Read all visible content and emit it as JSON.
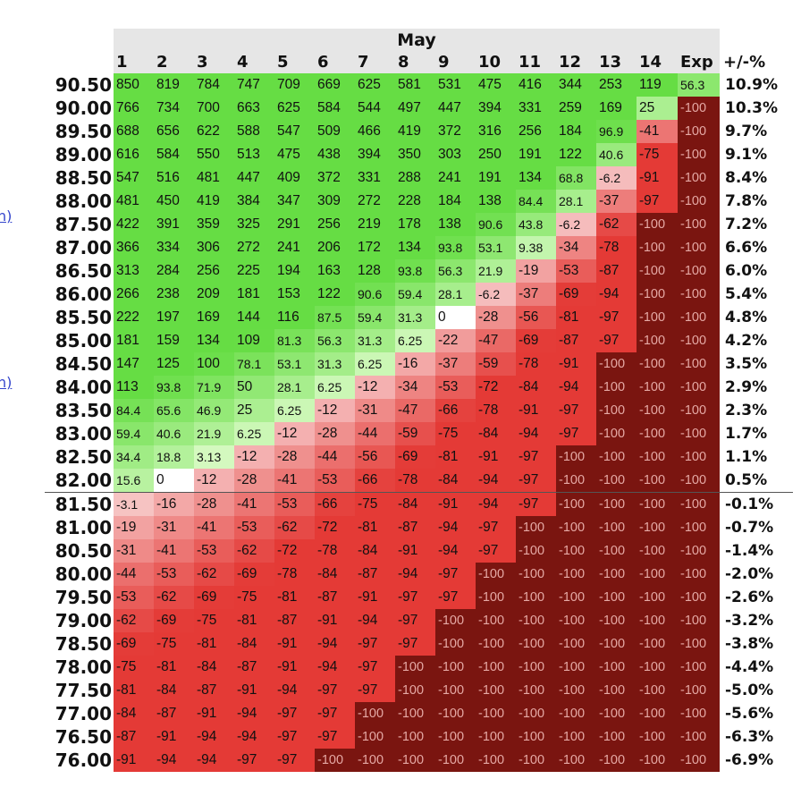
{
  "edge_links": [
    "n)",
    "n)"
  ],
  "header": {
    "month": "May",
    "pct_label": "+/-%"
  },
  "chart_data": {
    "type": "heatmap",
    "title": "May",
    "columns": [
      "1",
      "2",
      "3",
      "4",
      "5",
      "6",
      "7",
      "8",
      "9",
      "10",
      "11",
      "12",
      "13",
      "14",
      "Exp"
    ],
    "rows": [
      {
        "price": "90.50",
        "pct": "10.9%",
        "values": [
          "850",
          "819",
          "784",
          "747",
          "709",
          "669",
          "625",
          "581",
          "531",
          "475",
          "416",
          "344",
          "253",
          "119",
          "56.3"
        ]
      },
      {
        "price": "90.00",
        "pct": "10.3%",
        "values": [
          "766",
          "734",
          "700",
          "663",
          "625",
          "584",
          "544",
          "497",
          "447",
          "394",
          "331",
          "259",
          "169",
          "25",
          "-100"
        ]
      },
      {
        "price": "89.50",
        "pct": "9.7%",
        "values": [
          "688",
          "656",
          "622",
          "588",
          "547",
          "509",
          "466",
          "419",
          "372",
          "316",
          "256",
          "184",
          "96.9",
          "-41",
          "-100"
        ]
      },
      {
        "price": "89.00",
        "pct": "9.1%",
        "values": [
          "616",
          "584",
          "550",
          "513",
          "475",
          "438",
          "394",
          "350",
          "303",
          "250",
          "191",
          "122",
          "40.6",
          "-75",
          "-100"
        ]
      },
      {
        "price": "88.50",
        "pct": "8.4%",
        "values": [
          "547",
          "516",
          "481",
          "447",
          "409",
          "372",
          "331",
          "288",
          "241",
          "191",
          "134",
          "68.8",
          "-6.2",
          "-91",
          "-100"
        ]
      },
      {
        "price": "88.00",
        "pct": "7.8%",
        "values": [
          "481",
          "450",
          "419",
          "384",
          "347",
          "309",
          "272",
          "228",
          "184",
          "138",
          "84.4",
          "28.1",
          "-37",
          "-97",
          "-100"
        ]
      },
      {
        "price": "87.50",
        "pct": "7.2%",
        "values": [
          "422",
          "391",
          "359",
          "325",
          "291",
          "256",
          "219",
          "178",
          "138",
          "90.6",
          "43.8",
          "-6.2",
          "-62",
          "-100",
          "-100"
        ]
      },
      {
        "price": "87.00",
        "pct": "6.6%",
        "values": [
          "366",
          "334",
          "306",
          "272",
          "241",
          "206",
          "172",
          "134",
          "93.8",
          "53.1",
          "9.38",
          "-34",
          "-78",
          "-100",
          "-100"
        ]
      },
      {
        "price": "86.50",
        "pct": "6.0%",
        "values": [
          "313",
          "284",
          "256",
          "225",
          "194",
          "163",
          "128",
          "93.8",
          "56.3",
          "21.9",
          "-19",
          "-53",
          "-87",
          "-100",
          "-100"
        ]
      },
      {
        "price": "86.00",
        "pct": "5.4%",
        "values": [
          "266",
          "238",
          "209",
          "181",
          "153",
          "122",
          "90.6",
          "59.4",
          "28.1",
          "-6.2",
          "-37",
          "-69",
          "-94",
          "-100",
          "-100"
        ]
      },
      {
        "price": "85.50",
        "pct": "4.8%",
        "values": [
          "222",
          "197",
          "169",
          "144",
          "116",
          "87.5",
          "59.4",
          "31.3",
          "0",
          "-28",
          "-56",
          "-81",
          "-97",
          "-100",
          "-100"
        ]
      },
      {
        "price": "85.00",
        "pct": "4.2%",
        "values": [
          "181",
          "159",
          "134",
          "109",
          "81.3",
          "56.3",
          "31.3",
          "6.25",
          "-22",
          "-47",
          "-69",
          "-87",
          "-97",
          "-100",
          "-100"
        ]
      },
      {
        "price": "84.50",
        "pct": "3.5%",
        "values": [
          "147",
          "125",
          "100",
          "78.1",
          "53.1",
          "31.3",
          "6.25",
          "-16",
          "-37",
          "-59",
          "-78",
          "-91",
          "-100",
          "-100",
          "-100"
        ]
      },
      {
        "price": "84.00",
        "pct": "2.9%",
        "values": [
          "113",
          "93.8",
          "71.9",
          "50",
          "28.1",
          "6.25",
          "-12",
          "-34",
          "-53",
          "-72",
          "-84",
          "-94",
          "-100",
          "-100",
          "-100"
        ]
      },
      {
        "price": "83.50",
        "pct": "2.3%",
        "values": [
          "84.4",
          "65.6",
          "46.9",
          "25",
          "6.25",
          "-12",
          "-31",
          "-47",
          "-66",
          "-78",
          "-91",
          "-97",
          "-100",
          "-100",
          "-100"
        ]
      },
      {
        "price": "83.00",
        "pct": "1.7%",
        "values": [
          "59.4",
          "40.6",
          "21.9",
          "6.25",
          "-12",
          "-28",
          "-44",
          "-59",
          "-75",
          "-84",
          "-94",
          "-97",
          "-100",
          "-100",
          "-100"
        ]
      },
      {
        "price": "82.50",
        "pct": "1.1%",
        "values": [
          "34.4",
          "18.8",
          "3.13",
          "-12",
          "-28",
          "-44",
          "-56",
          "-69",
          "-81",
          "-91",
          "-97",
          "-100",
          "-100",
          "-100",
          "-100"
        ]
      },
      {
        "price": "82.00",
        "pct": "0.5%",
        "values": [
          "15.6",
          "0",
          "-12",
          "-28",
          "-41",
          "-53",
          "-66",
          "-78",
          "-84",
          "-94",
          "-97",
          "-100",
          "-100",
          "-100",
          "-100"
        ]
      },
      {
        "price": "81.50",
        "pct": "-0.1%",
        "values": [
          "-3.1",
          "-16",
          "-28",
          "-41",
          "-53",
          "-66",
          "-75",
          "-84",
          "-91",
          "-94",
          "-97",
          "-100",
          "-100",
          "-100",
          "-100"
        ]
      },
      {
        "price": "81.00",
        "pct": "-0.7%",
        "values": [
          "-19",
          "-31",
          "-41",
          "-53",
          "-62",
          "-72",
          "-81",
          "-87",
          "-94",
          "-97",
          "-100",
          "-100",
          "-100",
          "-100",
          "-100"
        ]
      },
      {
        "price": "80.50",
        "pct": "-1.4%",
        "values": [
          "-31",
          "-41",
          "-53",
          "-62",
          "-72",
          "-78",
          "-84",
          "-91",
          "-94",
          "-97",
          "-100",
          "-100",
          "-100",
          "-100",
          "-100"
        ]
      },
      {
        "price": "80.00",
        "pct": "-2.0%",
        "values": [
          "-44",
          "-53",
          "-62",
          "-69",
          "-78",
          "-84",
          "-87",
          "-94",
          "-97",
          "-100",
          "-100",
          "-100",
          "-100",
          "-100",
          "-100"
        ]
      },
      {
        "price": "79.50",
        "pct": "-2.6%",
        "values": [
          "-53",
          "-62",
          "-69",
          "-75",
          "-81",
          "-87",
          "-91",
          "-97",
          "-97",
          "-100",
          "-100",
          "-100",
          "-100",
          "-100",
          "-100"
        ]
      },
      {
        "price": "79.00",
        "pct": "-3.2%",
        "values": [
          "-62",
          "-69",
          "-75",
          "-81",
          "-87",
          "-91",
          "-94",
          "-97",
          "-100",
          "-100",
          "-100",
          "-100",
          "-100",
          "-100",
          "-100"
        ]
      },
      {
        "price": "78.50",
        "pct": "-3.8%",
        "values": [
          "-69",
          "-75",
          "-81",
          "-84",
          "-91",
          "-94",
          "-97",
          "-97",
          "-100",
          "-100",
          "-100",
          "-100",
          "-100",
          "-100",
          "-100"
        ]
      },
      {
        "price": "78.00",
        "pct": "-4.4%",
        "values": [
          "-75",
          "-81",
          "-84",
          "-87",
          "-91",
          "-94",
          "-97",
          "-100",
          "-100",
          "-100",
          "-100",
          "-100",
          "-100",
          "-100",
          "-100"
        ]
      },
      {
        "price": "77.50",
        "pct": "-5.0%",
        "values": [
          "-81",
          "-84",
          "-87",
          "-91",
          "-94",
          "-97",
          "-97",
          "-100",
          "-100",
          "-100",
          "-100",
          "-100",
          "-100",
          "-100",
          "-100"
        ]
      },
      {
        "price": "77.00",
        "pct": "-5.6%",
        "values": [
          "-84",
          "-87",
          "-91",
          "-94",
          "-97",
          "-97",
          "-100",
          "-100",
          "-100",
          "-100",
          "-100",
          "-100",
          "-100",
          "-100",
          "-100"
        ]
      },
      {
        "price": "76.50",
        "pct": "-6.3%",
        "values": [
          "-87",
          "-91",
          "-94",
          "-94",
          "-97",
          "-97",
          "-100",
          "-100",
          "-100",
          "-100",
          "-100",
          "-100",
          "-100",
          "-100",
          "-100"
        ]
      },
      {
        "price": "76.00",
        "pct": "-6.9%",
        "values": [
          "-91",
          "-94",
          "-94",
          "-97",
          "-97",
          "-100",
          "-100",
          "-100",
          "-100",
          "-100",
          "-100",
          "-100",
          "-100",
          "-100",
          "-100"
        ]
      }
    ],
    "separator_after_price": "82.00"
  },
  "colors": {
    "positive_max": "#66dd44",
    "positive_min": "#eaffd8",
    "zero": "#ffffff",
    "negative_light": "#f7c9c9",
    "negative_strong": "#e43a36",
    "full_loss": "#7a1510",
    "full_loss_text": "#e5a9a5",
    "header_bg": "#e6e6e6"
  }
}
